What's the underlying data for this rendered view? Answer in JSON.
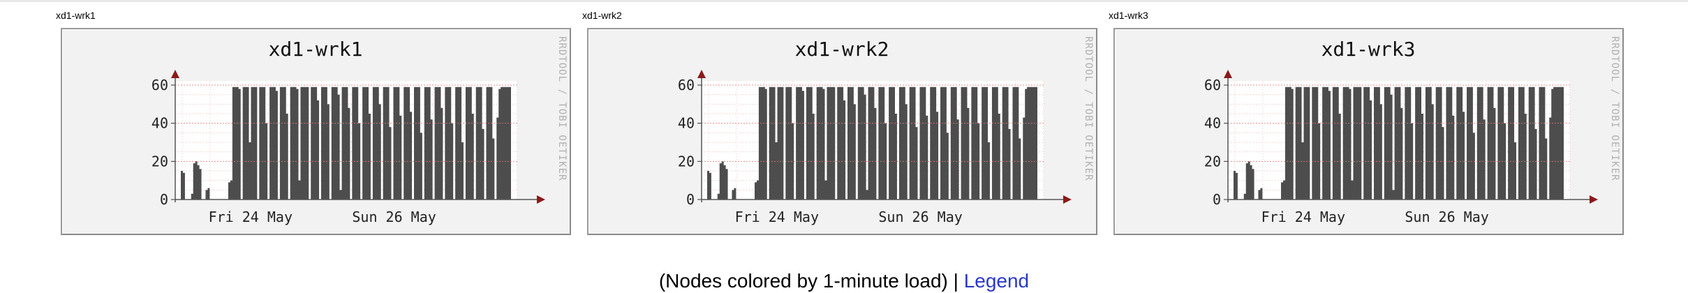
{
  "panels": [
    {
      "label": "xd1-wrk1",
      "title": "xd1-wrk1"
    },
    {
      "label": "xd1-wrk2",
      "title": "xd1-wrk2"
    },
    {
      "label": "xd1-wrk3",
      "title": "xd1-wrk3"
    }
  ],
  "watermark": "RRDTOOL / TOBI OETIKER",
  "footer": {
    "text": "(Nodes colored by 1-minute load) | ",
    "link_label": "Legend"
  },
  "colors": {
    "area": "#4d4d4d",
    "grid": "#e08080",
    "axis": "#8b1a1a",
    "background": "#f2f2f2"
  },
  "chart_data": {
    "type": "area",
    "ylim": [
      0,
      60
    ],
    "yticks": [
      0,
      20,
      40,
      60
    ],
    "xticks": [
      "Fri 24 May",
      "Sun 26 May"
    ],
    "grid": true,
    "series_hours": [
      0,
      1,
      2,
      3,
      4,
      5,
      6,
      7,
      8,
      9,
      10,
      11,
      12,
      13,
      14,
      15,
      16,
      17,
      18,
      19,
      20,
      21,
      22,
      23,
      24,
      25,
      26,
      27,
      28,
      29,
      30,
      31,
      32,
      33,
      34,
      35,
      36,
      37,
      38,
      39,
      40,
      41,
      42,
      43,
      44,
      45,
      46,
      47,
      48,
      49,
      50,
      51,
      52,
      53,
      54,
      55,
      56,
      57,
      58,
      59,
      60,
      61,
      62,
      63,
      64,
      65,
      66,
      67,
      68,
      69,
      70,
      71,
      72,
      73,
      74,
      75,
      76,
      77,
      78,
      79,
      80,
      81,
      82,
      83,
      84,
      85,
      86,
      87,
      88,
      89,
      90,
      91,
      92,
      93,
      94,
      95,
      96,
      97,
      98,
      99,
      100,
      101,
      102,
      103,
      104,
      105,
      106,
      107,
      108,
      109,
      110,
      111,
      112,
      113,
      114,
      115,
      116,
      117,
      118,
      119,
      120,
      121,
      122,
      123,
      124,
      125,
      126,
      127,
      128,
      129,
      130,
      131,
      132,
      133,
      134,
      135,
      136,
      137,
      138,
      139,
      140,
      141,
      142,
      143,
      144,
      145,
      146,
      147,
      148,
      149,
      150,
      151,
      152,
      153,
      154,
      155,
      156,
      157,
      158,
      159
    ],
    "series_values": [
      15,
      14,
      0,
      0,
      0,
      3,
      19,
      20,
      18,
      16,
      0,
      0,
      5,
      6,
      0,
      0,
      0,
      0,
      0,
      0,
      0,
      0,
      0,
      9,
      10,
      59,
      59,
      59,
      58,
      0,
      59,
      59,
      59,
      30,
      59,
      59,
      59,
      0,
      59,
      59,
      59,
      40,
      0,
      59,
      59,
      59,
      57,
      0,
      59,
      59,
      59,
      45,
      0,
      59,
      59,
      59,
      58,
      10,
      59,
      59,
      59,
      59,
      0,
      59,
      59,
      59,
      52,
      0,
      59,
      59,
      59,
      50,
      0,
      59,
      59,
      59,
      55,
      5,
      59,
      59,
      59,
      48,
      0,
      59,
      59,
      59,
      40,
      0,
      59,
      59,
      59,
      45,
      0,
      59,
      59,
      59,
      50,
      0,
      59,
      59,
      59,
      38,
      0,
      59,
      59,
      59,
      44,
      0,
      59,
      59,
      59,
      46,
      0,
      59,
      59,
      59,
      35,
      0,
      59,
      59,
      59,
      42,
      0,
      59,
      59,
      59,
      48,
      0,
      59,
      59,
      59,
      40,
      0,
      59,
      59,
      59,
      30,
      0,
      59,
      59,
      59,
      45,
      0,
      59,
      59,
      59,
      37,
      0,
      59,
      59,
      59,
      32,
      0,
      43,
      58,
      59,
      59,
      59,
      59,
      59,
      59,
      59
    ]
  }
}
